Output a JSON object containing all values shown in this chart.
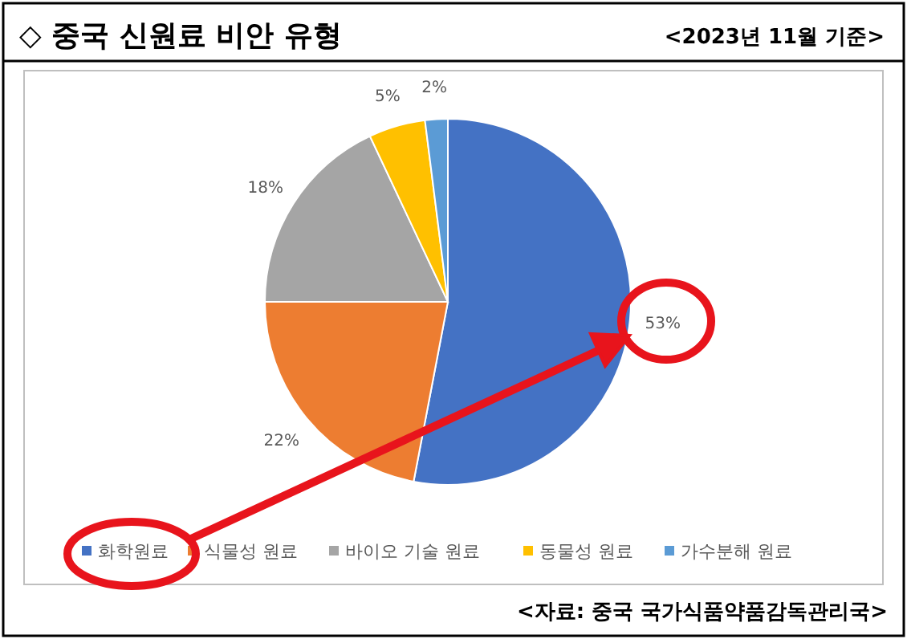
{
  "chart_data": {
    "type": "pie",
    "title": "◇ 중국 신원료 비안 유형",
    "subtitle": "<2023년 11월 기준>",
    "categories": [
      "화학원료",
      "식물성 원료",
      "바이오 기술 원료",
      "동물성 원료",
      "가수분해 원료"
    ],
    "values": [
      53,
      22,
      18,
      5,
      2
    ],
    "value_labels": [
      "53%",
      "22%",
      "18%",
      "5%",
      "2%"
    ],
    "colors": [
      "#4472c4",
      "#ed7d31",
      "#a5a5a5",
      "#ffc000",
      "#5b9bd5"
    ],
    "legend": "bottom",
    "annotations": [
      "<자료: 중국 국가식품약품감독관리국>"
    ]
  }
}
